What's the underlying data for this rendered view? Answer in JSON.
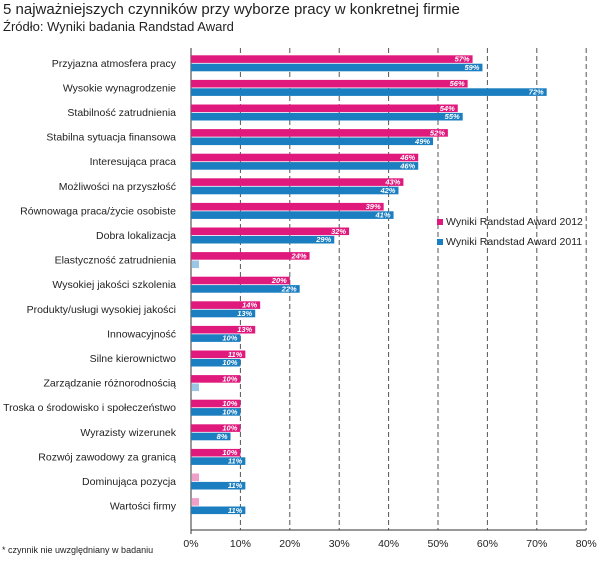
{
  "title": "5 najważniejszych czynników przy wyborze pracy w konkretnej firmie",
  "subtitle": "Źródło: Wyniki badania Randstad Award",
  "footnote": "* czynnik nie uwzględniany w badaniu",
  "colors": {
    "series_2012": "#e0197d",
    "series_2011": "#1a7ec0",
    "not_included_2012": "#f0a0c8",
    "not_included_2011": "#9cc6e6",
    "grid": "#555555"
  },
  "chart_data": {
    "type": "bar",
    "orientation": "horizontal",
    "categories": [
      "Przyjazna atmosfera pracy",
      "Wysokie wynagrodzenie",
      "Stabilność zatrudnienia",
      "Stabilna sytuacja finansowa",
      "Interesująca praca",
      "Możliwości na przyszłość",
      "Równowaga praca/życie osobiste",
      "Dobra lokalizacja",
      "Elastyczność zatrudnienia",
      "Wysokiej jakości szkolenia",
      "Produkty/usługi wysokiej jakości",
      "Innowacyjność",
      "Silne kierownictwo",
      "Zarządzanie różnorodnością",
      "Troska o środowisko i społeczeństwo",
      "Wyrazisty wizerunek",
      "Rozwój zawodowy za granicą",
      "Dominująca pozycja",
      "Wartości firmy"
    ],
    "series": [
      {
        "name": "Wyniki Randstad Award 2012",
        "values": [
          57,
          56,
          54,
          52,
          46,
          43,
          39,
          32,
          24,
          20,
          14,
          13,
          11,
          10,
          10,
          10,
          10,
          null,
          null
        ],
        "labels": [
          "57%",
          "56%",
          "54%",
          "52%",
          "46%",
          "43%",
          "39%",
          "32%",
          "24%",
          "20%",
          "14%",
          "13%",
          "11%",
          "10%",
          "10%",
          "10%",
          "10%",
          "",
          ""
        ]
      },
      {
        "name": "Wyniki Randstad Award 2011",
        "values": [
          59,
          72,
          55,
          49,
          46,
          42,
          41,
          29,
          null,
          22,
          13,
          10,
          10,
          null,
          10,
          8,
          11,
          11,
          11
        ],
        "labels": [
          "59%",
          "72%",
          "55%",
          "49%",
          "46%",
          "42%",
          "41%",
          "29%",
          "",
          "22%",
          "13%",
          "10%",
          "10%",
          "",
          "10%",
          "8%",
          "11%",
          "11%",
          "11%"
        ]
      }
    ],
    "xlim": [
      0,
      80
    ],
    "xticks": [
      "0%",
      "10%",
      "20%",
      "30%",
      "40%",
      "50%",
      "60%",
      "70%",
      "80%"
    ],
    "grid": "vertical dashed",
    "legend_position": "right"
  }
}
